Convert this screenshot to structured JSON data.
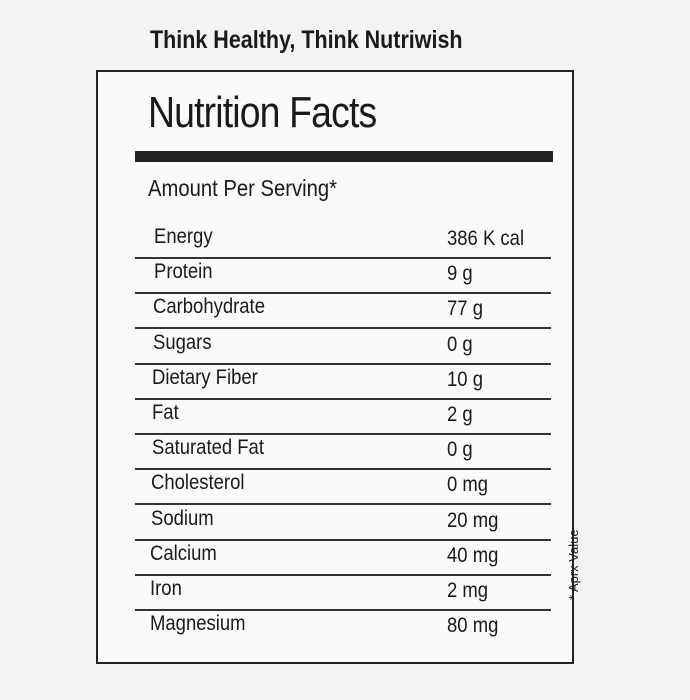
{
  "header": {
    "tagline": "Think Healthy, Think Nutriwish"
  },
  "label": {
    "title": "Nutrition Facts",
    "subtitle": "Amount Per Serving*",
    "rows": [
      [
        "Energy",
        "386 K cal"
      ],
      [
        "Protein",
        "9 g"
      ],
      [
        "Carbohydrate",
        "77 g"
      ],
      [
        "Sugars",
        "0 g"
      ],
      [
        "Dietary Fiber",
        "10 g"
      ],
      [
        "Fat",
        "2 g"
      ],
      [
        "Saturated Fat",
        "0 g"
      ],
      [
        "Cholesterol",
        "0 mg"
      ],
      [
        "Sodium",
        "20 mg"
      ],
      [
        "Calcium",
        "40 mg"
      ],
      [
        "Iron",
        "2 mg"
      ],
      [
        "Magnesium",
        "80 mg"
      ]
    ],
    "note": "* Aprx Value"
  }
}
